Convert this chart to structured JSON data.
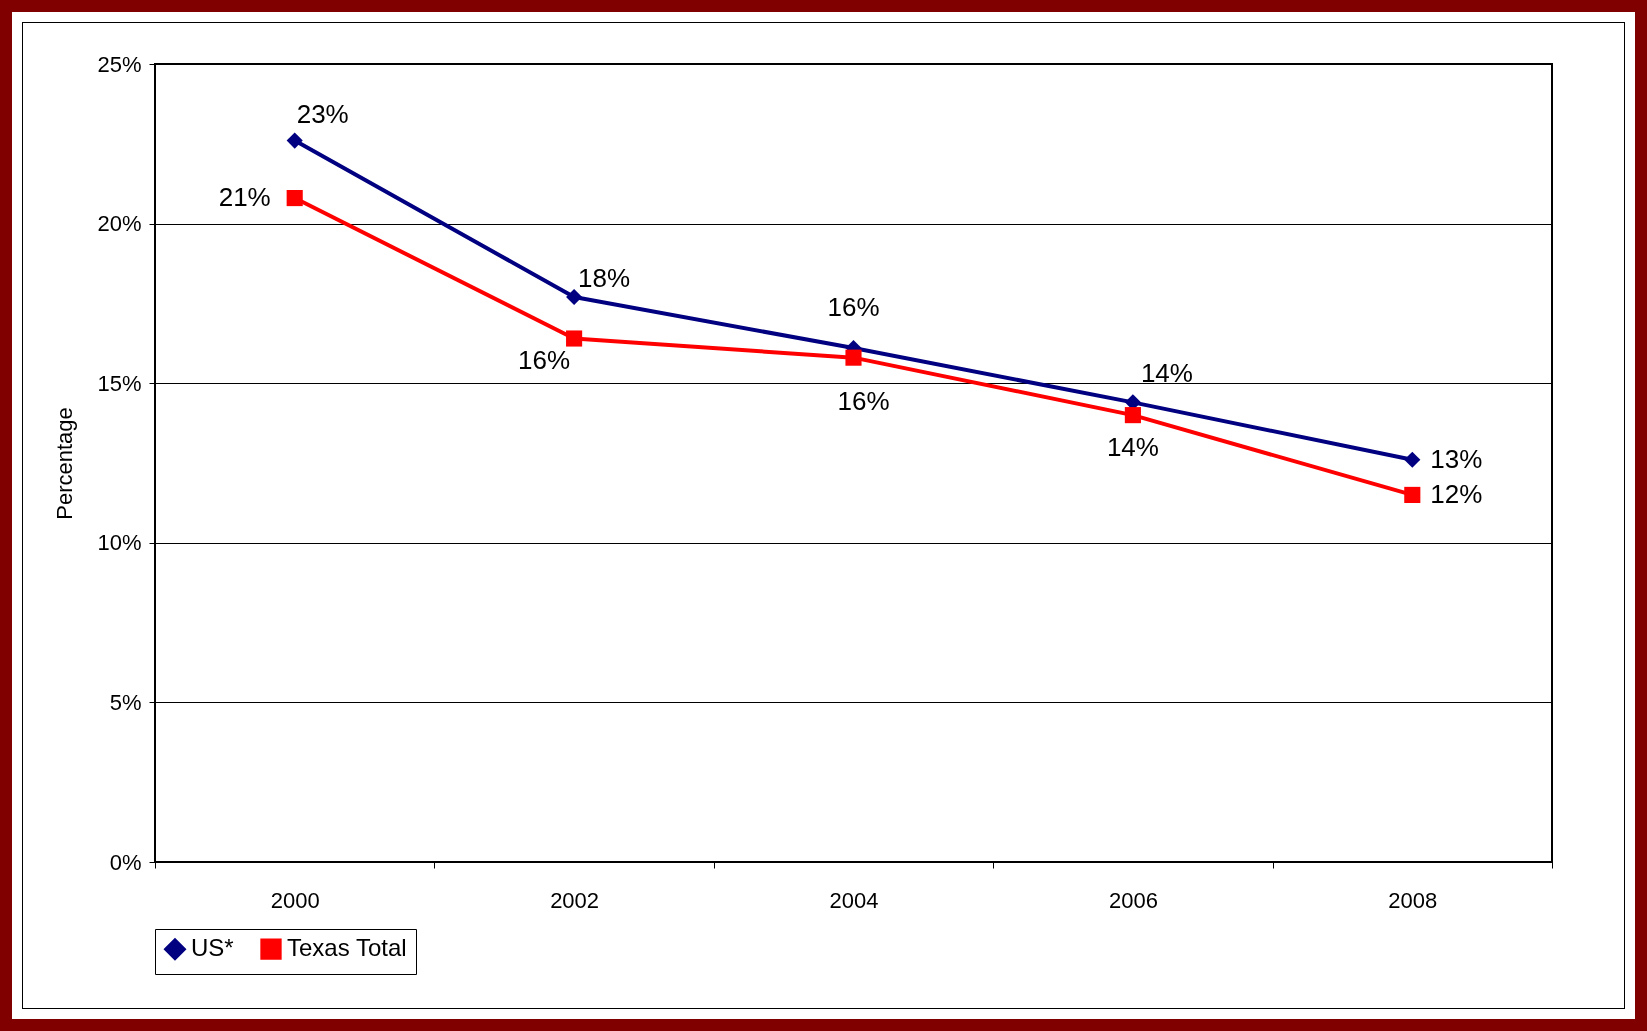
{
  "chart_data": {
    "type": "line",
    "ylabel": "Percentage",
    "categories": [
      "2000",
      "2002",
      "2004",
      "2006",
      "2008"
    ],
    "series": [
      {
        "name": "US*",
        "color": "#000080",
        "marker": "diamond",
        "values": [
          22.6,
          17.7,
          16.1,
          14.4,
          12.6
        ],
        "value_labels": [
          "23%",
          "18%",
          "16%",
          "14%",
          "13%"
        ]
      },
      {
        "name": "Texas Total",
        "color": "#ff0000",
        "marker": "square",
        "values": [
          20.8,
          16.4,
          15.8,
          14.0,
          11.5
        ],
        "value_labels": [
          "21%",
          "16%",
          "16%",
          "14%",
          "12%"
        ]
      }
    ],
    "ylim": [
      0,
      25
    ],
    "yticks": [
      {
        "value": 0,
        "label": "0%"
      },
      {
        "value": 5,
        "label": "5%"
      },
      {
        "value": 10,
        "label": "10%"
      },
      {
        "value": 15,
        "label": "15%"
      },
      {
        "value": 20,
        "label": "20%"
      },
      {
        "value": 25,
        "label": "25%"
      }
    ],
    "grid": "y",
    "legend": "bottom",
    "line_style": "solid"
  }
}
